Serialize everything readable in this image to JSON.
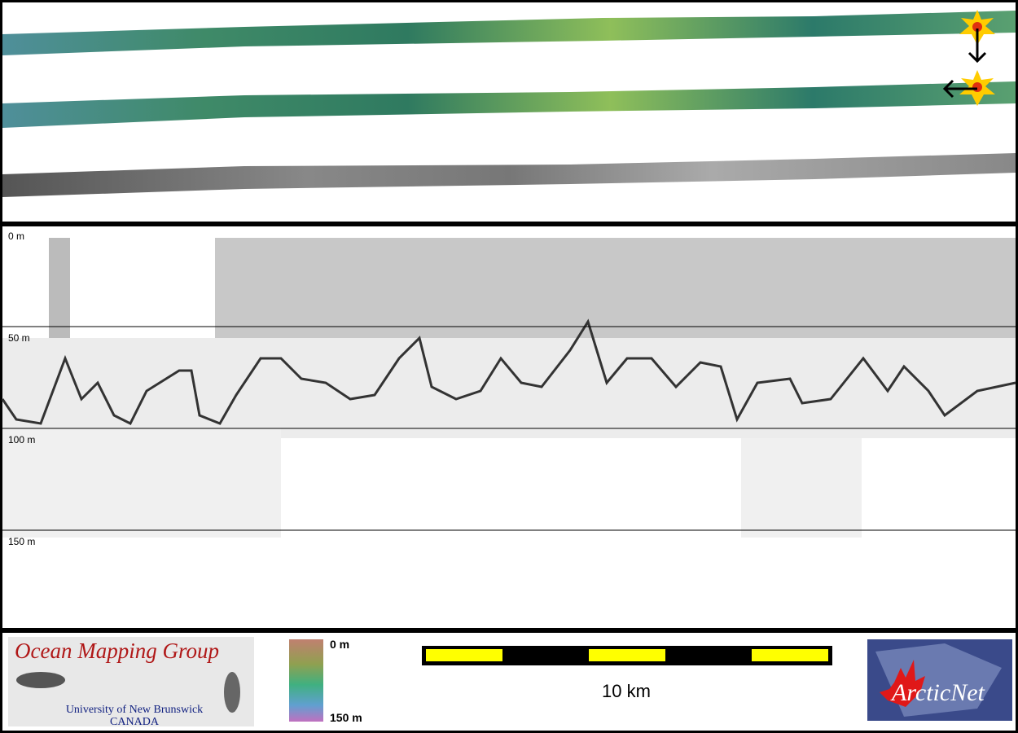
{
  "profile": {
    "depth_labels": [
      "0 m",
      "50 m",
      "100 m",
      "150 m"
    ]
  },
  "footer": {
    "logo_left": {
      "title": "Ocean Mapping Group",
      "line1": "University of New Brunswick",
      "line2": "CANADA"
    },
    "colorbar": {
      "top_label": "0 m",
      "bottom_label": "150 m"
    },
    "scale_bar": {
      "label": "10 km"
    },
    "logo_right": {
      "title": "ArcticNet"
    }
  }
}
